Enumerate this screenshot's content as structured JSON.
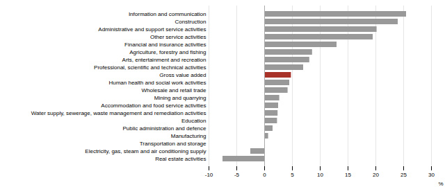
{
  "chart_data": {
    "type": "bar",
    "orientation": "horizontal",
    "categories": [
      "Information and communication",
      "Construction",
      "Administrative and support service activities",
      "Other service activities",
      "Financial and insurance activities",
      "Agriculture, forestry and fishing",
      "Arts, entertainment and recreation",
      "Professional, scientific and technical activities",
      "Gross value added",
      "Human health and social work activities",
      "Wholesale and retail trade",
      "Mining and quarrying",
      "Accommodation and food service activities",
      "Water supply, sewerage, waste management and remediation activities",
      "Education",
      "Public administration and defence",
      "Manufacturing",
      "Transportation and storage",
      "Electricity, gas, steam and air conditioning supply",
      "Real estate activities"
    ],
    "values": [
      25.5,
      24.0,
      20.2,
      19.5,
      13.0,
      8.6,
      8.1,
      7.0,
      4.8,
      4.5,
      4.2,
      2.7,
      2.5,
      2.4,
      2.3,
      1.5,
      0.7,
      0.05,
      -2.5,
      -7.5
    ],
    "colors": [
      "#999999",
      "#999999",
      "#999999",
      "#999999",
      "#999999",
      "#999999",
      "#999999",
      "#999999",
      "#a83228",
      "#999999",
      "#999999",
      "#999999",
      "#999999",
      "#999999",
      "#999999",
      "#999999",
      "#999999",
      "#999999",
      "#999999",
      "#999999"
    ],
    "xlim": [
      -10,
      30
    ],
    "xticks": [
      -10,
      -5,
      0,
      5,
      10,
      15,
      20,
      25,
      30
    ],
    "xlabel": "%",
    "grid": true
  }
}
